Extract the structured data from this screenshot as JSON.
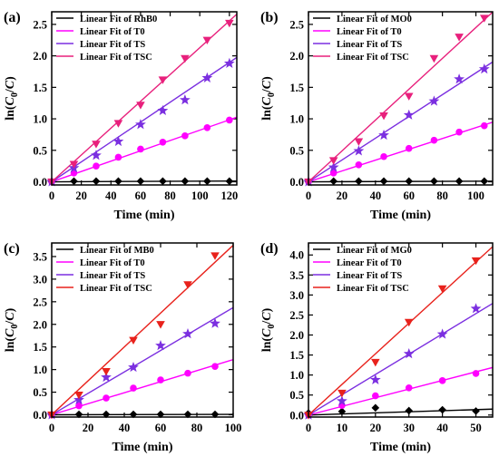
{
  "chart_data": [
    {
      "type": "scatter",
      "panel_label": "(a)",
      "xlabel": "Time (min)",
      "ylabel": "ln(C0/C)",
      "xlim": [
        0,
        125
      ],
      "ylim": [
        -0.05,
        2.7
      ],
      "xticks": [
        0,
        20,
        40,
        60,
        80,
        100,
        120
      ],
      "yticks": [
        0.0,
        0.5,
        1.0,
        1.5,
        2.0,
        2.5
      ],
      "y_decimals": 1,
      "legend_position": "top-left",
      "series": [
        {
          "name": "Linear Fit of RhB0",
          "color": "#000000",
          "marker": "diamond",
          "slope": 0.0001,
          "x": [
            0,
            15,
            30,
            45,
            60,
            75,
            90,
            105,
            120
          ],
          "y": [
            0.0,
            0.01,
            0.01,
            0.01,
            0.01,
            0.01,
            0.01,
            0.01,
            0.01
          ]
        },
        {
          "name": "Linear Fit of T0",
          "color": "#ff00ff",
          "marker": "circle",
          "slope": 0.0082,
          "x": [
            0,
            15,
            30,
            45,
            60,
            75,
            90,
            105,
            120
          ],
          "y": [
            0.0,
            0.14,
            0.25,
            0.39,
            0.52,
            0.63,
            0.73,
            0.86,
            0.98
          ]
        },
        {
          "name": "Linear Fit of TS",
          "color": "#7b2fe0",
          "marker": "star",
          "slope": 0.0158,
          "x": [
            0,
            15,
            30,
            45,
            60,
            75,
            90,
            105,
            120
          ],
          "y": [
            0.0,
            0.22,
            0.42,
            0.64,
            0.91,
            1.13,
            1.3,
            1.65,
            1.88
          ]
        },
        {
          "name": "Linear Fit of TSC",
          "color": "#e8207c",
          "marker": "triangle-down",
          "slope": 0.0213,
          "x": [
            0,
            15,
            30,
            45,
            60,
            75,
            90,
            105,
            120
          ],
          "y": [
            0.0,
            0.28,
            0.6,
            0.93,
            1.22,
            1.62,
            1.96,
            2.25,
            2.52
          ]
        }
      ]
    },
    {
      "type": "scatter",
      "panel_label": "(b)",
      "xlabel": "Time (min)",
      "ylabel": "ln(C0/C)",
      "xlim": [
        0,
        110
      ],
      "ylim": [
        -0.05,
        2.7
      ],
      "xticks": [
        0,
        20,
        40,
        60,
        80,
        100
      ],
      "yticks": [
        0.0,
        0.5,
        1.0,
        1.5,
        2.0,
        2.5
      ],
      "y_decimals": 1,
      "legend_position": "top-left",
      "series": [
        {
          "name": "Linear Fit of MO0",
          "color": "#000000",
          "marker": "diamond",
          "slope": 0.0001,
          "x": [
            0,
            15,
            30,
            45,
            60,
            75,
            90,
            105
          ],
          "y": [
            0.0,
            0.01,
            0.01,
            0.01,
            0.01,
            0.01,
            0.01,
            0.01
          ]
        },
        {
          "name": "Linear Fit of T0",
          "color": "#ff00ff",
          "marker": "circle",
          "slope": 0.0086,
          "x": [
            0,
            15,
            30,
            45,
            60,
            75,
            90,
            105
          ],
          "y": [
            0.0,
            0.14,
            0.27,
            0.4,
            0.53,
            0.66,
            0.79,
            0.89
          ]
        },
        {
          "name": "Linear Fit of TS",
          "color": "#7b2fe0",
          "marker": "star",
          "slope": 0.0173,
          "x": [
            0,
            15,
            30,
            45,
            60,
            75,
            90,
            105
          ],
          "y": [
            0.0,
            0.23,
            0.49,
            0.74,
            1.06,
            1.28,
            1.63,
            1.79
          ]
        },
        {
          "name": "Linear Fit of TSC",
          "color": "#e8207c",
          "marker": "triangle-down",
          "slope": 0.0245,
          "x": [
            0,
            15,
            30,
            45,
            60,
            75,
            90,
            105
          ],
          "y": [
            0.0,
            0.34,
            0.64,
            1.05,
            1.36,
            1.96,
            2.3,
            2.6
          ]
        }
      ]
    },
    {
      "type": "scatter",
      "panel_label": "(c)",
      "xlabel": "Time (min)",
      "ylabel": "ln(C0/C)",
      "xlim": [
        0,
        100
      ],
      "ylim": [
        -0.05,
        3.8
      ],
      "xticks": [
        0,
        20,
        40,
        60,
        80,
        100
      ],
      "yticks": [
        0.0,
        0.5,
        1.0,
        1.5,
        2.0,
        2.5,
        3.0,
        3.5
      ],
      "y_decimals": 1,
      "legend_position": "top-left",
      "series": [
        {
          "name": "Linear Fit of MB0",
          "color": "#000000",
          "marker": "diamond",
          "slope": 0.0001,
          "x": [
            0,
            15,
            30,
            45,
            60,
            75,
            90
          ],
          "y": [
            0.0,
            0.01,
            0.01,
            0.01,
            0.01,
            0.01,
            0.01
          ]
        },
        {
          "name": "Linear Fit of T0",
          "color": "#ff00ff",
          "marker": "circle",
          "slope": 0.0122,
          "x": [
            0,
            15,
            30,
            45,
            60,
            75,
            90
          ],
          "y": [
            0.0,
            0.2,
            0.37,
            0.59,
            0.77,
            0.92,
            1.07
          ]
        },
        {
          "name": "Linear Fit of TS",
          "color": "#7b2fe0",
          "marker": "star",
          "slope": 0.0237,
          "x": [
            0,
            15,
            30,
            45,
            60,
            75,
            90
          ],
          "y": [
            0.0,
            0.33,
            0.83,
            1.05,
            1.53,
            1.79,
            2.02
          ]
        },
        {
          "name": "Linear Fit of TSC",
          "color": "#e8221c",
          "marker": "triangle-down",
          "slope": 0.0375,
          "x": [
            0,
            15,
            30,
            45,
            60,
            75,
            90
          ],
          "y": [
            0.0,
            0.44,
            0.96,
            1.65,
            2.0,
            2.88,
            3.52
          ]
        }
      ]
    },
    {
      "type": "scatter",
      "panel_label": "(d)",
      "xlabel": "Time (min)",
      "ylabel": "ln(C0/C)",
      "xlim": [
        0,
        55
      ],
      "ylim": [
        -0.05,
        4.3
      ],
      "xticks": [
        0,
        10,
        20,
        30,
        40,
        50
      ],
      "yticks": [
        0.0,
        0.5,
        1.0,
        1.5,
        2.0,
        2.5,
        3.0,
        3.5,
        4.0
      ],
      "y_decimals": 1,
      "legend_position": "top-left",
      "series": [
        {
          "name": "Linear Fit of MG0",
          "color": "#000000",
          "marker": "diamond",
          "slope": 0.0027,
          "x": [
            0,
            10,
            20,
            30,
            40,
            50
          ],
          "y": [
            0.05,
            0.09,
            0.18,
            0.11,
            0.13,
            0.1
          ]
        },
        {
          "name": "Linear Fit of T0",
          "color": "#ff00ff",
          "marker": "circle",
          "slope": 0.0216,
          "x": [
            0,
            10,
            20,
            30,
            40,
            50
          ],
          "y": [
            0.0,
            0.24,
            0.48,
            0.68,
            0.86,
            1.04
          ]
        },
        {
          "name": "Linear Fit of TS",
          "color": "#7b2fe0",
          "marker": "star",
          "slope": 0.0507,
          "x": [
            0,
            10,
            20,
            30,
            40,
            50
          ],
          "y": [
            0.0,
            0.35,
            0.88,
            1.53,
            2.02,
            2.66
          ]
        },
        {
          "name": "Linear Fit of TSC",
          "color": "#e8221c",
          "marker": "triangle-down",
          "slope": 0.0765,
          "x": [
            0,
            10,
            20,
            30,
            40,
            50
          ],
          "y": [
            0.0,
            0.55,
            1.32,
            2.32,
            3.16,
            3.86
          ]
        }
      ]
    }
  ]
}
